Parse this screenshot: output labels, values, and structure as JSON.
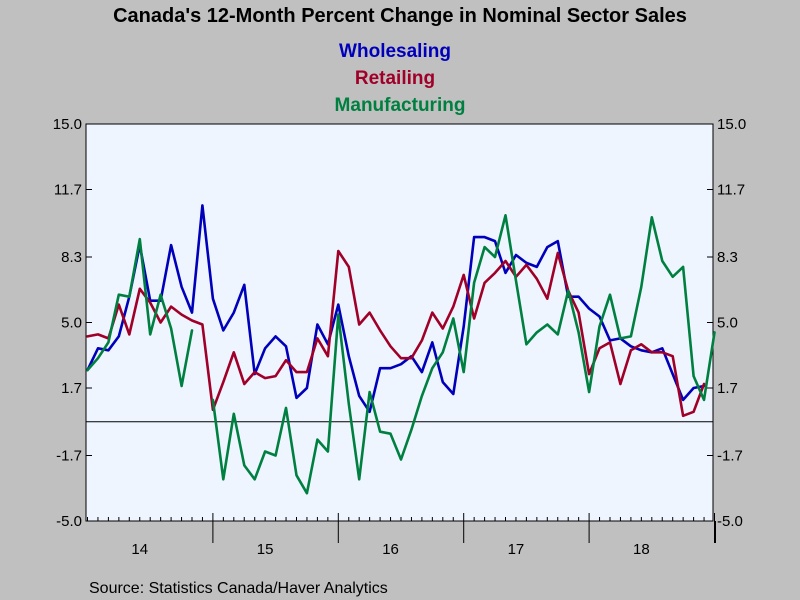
{
  "chart_data": {
    "type": "line",
    "title": "Canada's 12-Month Percent Change in Nominal Sector Sales",
    "source": "Source:  Statistics Canada/Haver Analytics",
    "x_start": "2014-01",
    "x_tick_labels": [
      "14",
      "15",
      "16",
      "17",
      "18"
    ],
    "y_ticks": [
      "15.0",
      "11.7",
      "8.3",
      "5.0",
      "1.7",
      "-1.7",
      "-5.0"
    ],
    "ylim": [
      -5.0,
      15.0
    ],
    "reference_line": 0,
    "series": [
      {
        "name": "Wholesaling",
        "color": "#0000bb",
        "values": [
          2.6,
          3.7,
          3.6,
          4.3,
          6.3,
          8.9,
          6.1,
          6.1,
          8.9,
          6.8,
          5.5,
          10.9,
          6.2,
          4.6,
          5.5,
          6.9,
          2.4,
          3.7,
          4.3,
          3.8,
          1.2,
          1.7,
          4.9,
          3.9,
          5.9,
          3.3,
          1.3,
          0.5,
          2.7,
          2.7,
          2.9,
          3.3,
          2.5,
          4.0,
          2.0,
          1.4,
          4.8,
          9.3,
          9.3,
          9.1,
          7.5,
          8.4,
          8.0,
          7.8,
          8.8,
          9.1,
          6.3,
          6.3,
          5.7,
          5.3,
          4.1,
          4.2,
          3.8,
          3.6,
          3.5,
          3.7,
          2.4,
          1.1,
          1.7,
          1.8
        ]
      },
      {
        "name": "Retailing",
        "color": "#a00028",
        "values": [
          4.3,
          4.4,
          4.2,
          5.9,
          4.4,
          6.7,
          6.0,
          5.0,
          5.8,
          5.4,
          5.1,
          4.9,
          0.6,
          2.0,
          3.5,
          1.9,
          2.5,
          2.2,
          2.3,
          3.1,
          2.5,
          2.5,
          4.2,
          3.3,
          8.6,
          7.8,
          4.9,
          5.5,
          4.6,
          3.8,
          3.2,
          3.2,
          4.1,
          5.5,
          4.7,
          5.8,
          7.4,
          5.2,
          7.0,
          7.5,
          8.1,
          7.3,
          7.9,
          7.2,
          6.2,
          8.5,
          6.6,
          5.5,
          2.4,
          3.7,
          4.0,
          1.9,
          3.6,
          3.9,
          3.5,
          3.5,
          3.3,
          0.3,
          0.5,
          1.9
        ]
      },
      {
        "name": "Manufacturing",
        "color": "#008040",
        "values": [
          2.6,
          3.2,
          4.0,
          6.4,
          6.3,
          9.2,
          4.4,
          6.4,
          4.7,
          1.8,
          4.6,
          null,
          1.1,
          -2.9,
          0.4,
          -2.2,
          -2.9,
          -1.5,
          -1.7,
          0.7,
          -2.7,
          -3.6,
          -0.9,
          -1.5,
          5.4,
          0.9,
          -2.9,
          1.5,
          -0.5,
          -0.6,
          -1.9,
          -0.4,
          1.3,
          2.7,
          3.5,
          5.2,
          2.5,
          7.0,
          8.8,
          8.3,
          10.4,
          7.1,
          3.9,
          4.5,
          4.9,
          4.4,
          6.6,
          4.5,
          1.5,
          4.8,
          6.4,
          4.2,
          4.3,
          6.8,
          10.3,
          8.1,
          7.3,
          7.8,
          2.3,
          1.1,
          4.5
        ]
      }
    ]
  }
}
